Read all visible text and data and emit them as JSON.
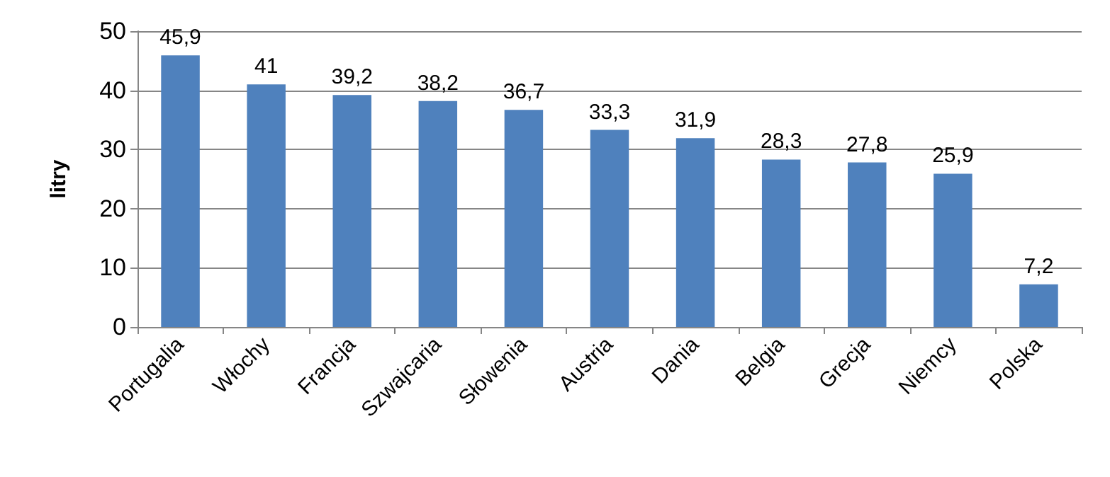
{
  "chart_data": {
    "type": "bar",
    "ylabel": "litry",
    "categories": [
      "Portugalia",
      "Włochy",
      "Francja",
      "Szwajcaria",
      "Słowenia",
      "Austria",
      "Dania",
      "Belgia",
      "Grecja",
      "Niemcy",
      "Polska"
    ],
    "values": [
      45.9,
      41,
      39.2,
      38.2,
      36.7,
      33.3,
      31.9,
      28.3,
      27.8,
      25.9,
      7.2
    ],
    "value_labels": [
      "45,9",
      "41",
      "39,2",
      "38,2",
      "36,7",
      "33,3",
      "31,9",
      "28,3",
      "27,8",
      "25,9",
      "7,2"
    ],
    "color": "#4f81bd",
    "ylim": [
      0,
      50
    ],
    "yticks": [
      0,
      10,
      20,
      30,
      40,
      50
    ],
    "grid": "y"
  }
}
